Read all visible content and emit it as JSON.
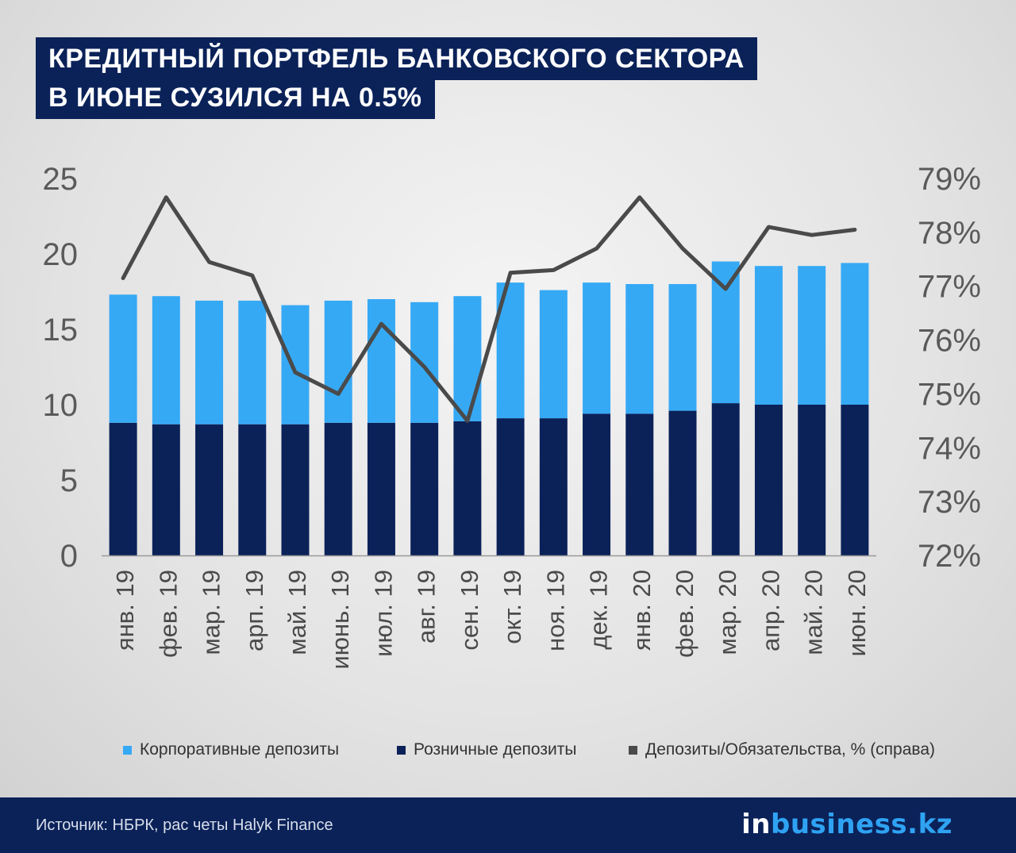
{
  "title": {
    "line1": "КРЕДИТНЫЙ ПОРТФЕЛЬ БАНКОВСКОГО СЕКТОРА",
    "line2": "В ИЮНЕ СУЗИЛСЯ НА 0.5%"
  },
  "chart_data": {
    "type": "bar",
    "stacked": true,
    "categories": [
      "янв. 19",
      "фев. 19",
      "мар. 19",
      "арп. 19",
      "май. 19",
      "июнь. 19",
      "июл. 19",
      "авг. 19",
      "сен. 19",
      "окт. 19",
      "ноя. 19",
      "дек. 19",
      "янв. 20",
      "фев. 20",
      "мар. 20",
      "апр. 20",
      "май. 20",
      "июн. 20"
    ],
    "series": [
      {
        "name": "Розничные депозиты",
        "color": "#0b2259",
        "values": [
          8.8,
          8.7,
          8.7,
          8.7,
          8.7,
          8.8,
          8.8,
          8.8,
          8.9,
          9.1,
          9.1,
          9.4,
          9.4,
          9.6,
          10.1,
          10.0,
          10.0,
          10.0
        ]
      },
      {
        "name": "Корпоративные депозиты",
        "color": "#36a9f5",
        "values": [
          8.5,
          8.5,
          8.2,
          8.2,
          7.9,
          8.1,
          8.2,
          8.0,
          8.3,
          9.0,
          8.5,
          8.7,
          8.6,
          8.4,
          9.4,
          9.2,
          9.2,
          9.4
        ]
      }
    ],
    "line_series": {
      "name": "Депозиты/Обязательства, % (справа)",
      "color": "#4a4a4a",
      "axis": "right",
      "values": [
        77.15,
        78.65,
        77.45,
        77.2,
        75.4,
        75.0,
        76.3,
        75.5,
        74.5,
        77.25,
        77.3,
        77.7,
        78.65,
        77.7,
        76.95,
        78.1,
        77.95,
        78.05
      ]
    },
    "ylim": [
      0,
      25
    ],
    "yticks": [
      "0",
      "5",
      "10",
      "15",
      "20",
      "25"
    ],
    "ylim_right": [
      72,
      79
    ],
    "yticks_right": [
      "72%",
      "73%",
      "74%",
      "75%",
      "76%",
      "77%",
      "78%",
      "79%"
    ],
    "legend_position": "bottom"
  },
  "legend": [
    {
      "label": "Корпоративные депозиты",
      "color": "#36a9f5"
    },
    {
      "label": "Розничные депозиты",
      "color": "#0b2259"
    },
    {
      "label": "Депозиты/Обязательства, % (справа)",
      "color": "#4a4a4a"
    }
  ],
  "footer": {
    "source": "Источник: НБРК, рас четы Halyk Finance",
    "logo_in": "in",
    "logo_rest": "business.kz"
  }
}
